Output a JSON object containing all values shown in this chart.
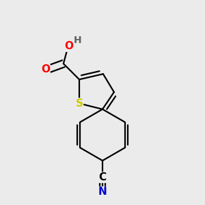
{
  "background_color": "#ebebeb",
  "atom_colors": {
    "C": "#000000",
    "H": "#606060",
    "O": "#ff0000",
    "N": "#0000cc",
    "S": "#cccc00"
  },
  "bond_color": "#000000",
  "bond_width": 1.6,
  "font_size_atoms": 11,
  "font_size_H": 10
}
